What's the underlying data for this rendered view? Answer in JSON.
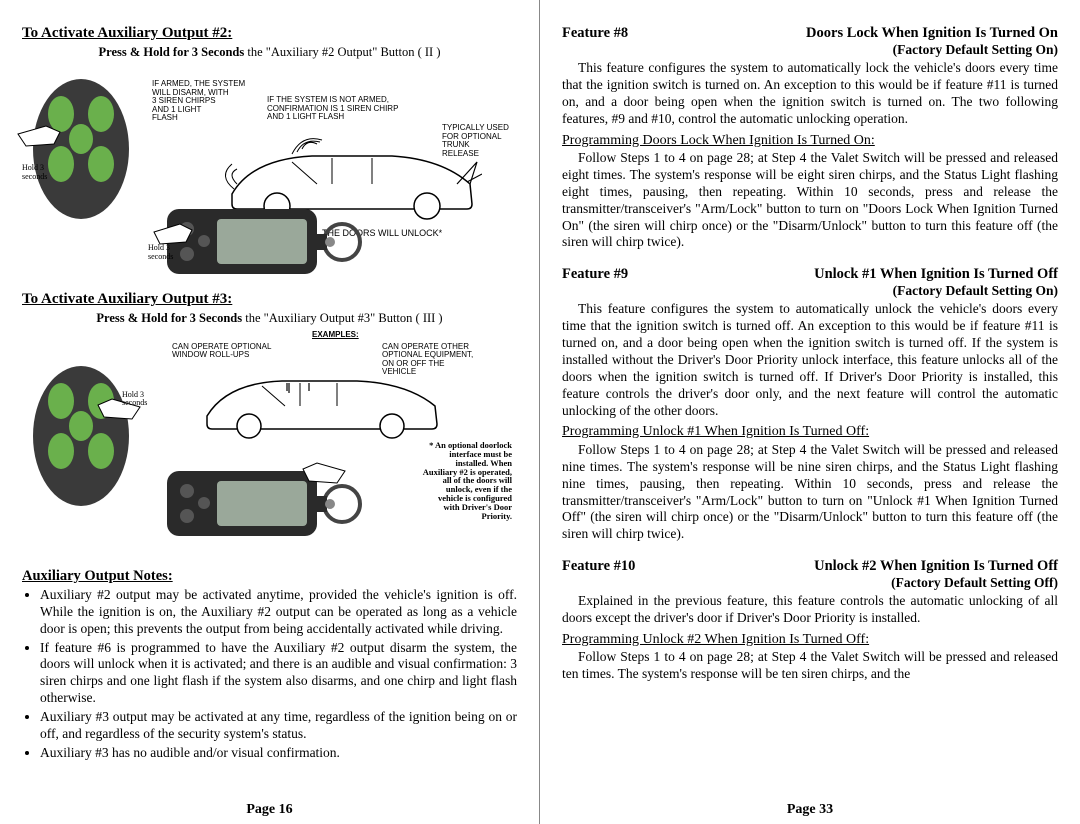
{
  "left": {
    "section2": {
      "title": "To Activate Auxiliary Output #2:",
      "instruction_prefix": "Press & Hold for 3 Seconds",
      "instruction_suffix": " the \"Auxiliary #2 Output\" Button ( II )",
      "labels": {
        "hold3": "Hold 3\nseconds",
        "armed": "IF ARMED, THE SYSTEM\nWILL DISARM, WITH\n3 SIREN CHIRPS\nAND 1 LIGHT\nFLASH",
        "notarmed": "IF THE SYSTEM IS NOT ARMED,\nCONFIRMATION IS 1 SIREN CHIRP\nAND 1 LIGHT FLASH",
        "typical": "TYPICALLY USED\nFOR OPTIONAL\nTRUNK\nRELEASE",
        "doorsunlock": "THE DOORS WILL UNLOCK*",
        "hold3b": "Hold 3\nseconds"
      }
    },
    "section3": {
      "title": "To Activate Auxiliary Output #3:",
      "instruction_prefix": "Press & Hold for 3 Seconds",
      "instruction_suffix": " the \"Auxiliary Output #3\" Button ( III )",
      "labels": {
        "examples": "EXAMPLES:",
        "rollups": "CAN OPERATE OPTIONAL\nWINDOW ROLL-UPS",
        "other": "CAN OPERATE OTHER\nOPTIONAL EQUIPMENT,\nON OR OFF THE\nVEHICLE",
        "hold3": "Hold 3\nseconds",
        "footnote": "* An optional doorlock\ninterface must be\ninstalled.  When\nAuxiliary #2 is operated,\nall of the doors will\nunlock, even if the\nvehicle is configured\nwith Driver's Door\nPriority."
      }
    },
    "notes_title": "Auxiliary Output Notes:",
    "notes": [
      "Auxiliary #2 output may be activated anytime, provided the vehicle's ignition is off.  While the ignition is on, the Auxiliary #2 output can be operated as long as a vehicle door is open; this prevents the output from being accidentally activated while driving.",
      "If feature #6 is programmed to have the Auxiliary #2 output disarm the system, the doors will unlock when it is activated; and there is an audible and visual confirmation: 3 siren chirps and one light flash if the system also disarms, and one chirp and light flash otherwise.",
      "Auxiliary #3 output may be activated at any time, regardless of the ignition being on or off, and regardless of the security system's status.",
      "Auxiliary #3 has no audible and/or visual confirmation."
    ],
    "page_num": "Page 16"
  },
  "right": {
    "f8": {
      "num": "Feature #8",
      "title": "Doors Lock When Ignition Is Turned On",
      "factory": "(Factory Default Setting  On)",
      "body": "This feature configures the system to automatically lock the vehicle's doors every time that the ignition switch is turned on.  An exception to this would be if feature #11 is turned on, and a door being open when the ignition switch is turned on.  The two following features, #9 and #10, control the automatic unlocking operation.",
      "prog_title": "Programming Doors Lock When Ignition Is Turned On:",
      "prog_body": "Follow Steps 1 to 4 on page 28; at Step 4 the Valet Switch will be pressed and released eight times.  The system's response will be eight siren chirps, and the Status Light flashing eight times, pausing, then repeating.  Within 10 seconds, press and release the transmitter/transceiver's \"Arm/Lock\" button to turn on \"Doors Lock When Ignition Turned On\" (the siren will chirp once) or the \"Disarm/Unlock\" button to turn this feature off (the siren will chirp twice)."
    },
    "f9": {
      "num": "Feature #9",
      "title": "Unlock #1 When Ignition Is Turned Off",
      "factory": "(Factory Default Setting  On)",
      "body": "This feature configures the system to automatically unlock the vehicle's doors every time that the ignition switch is turned off.  An exception to this would be if feature #11 is turned on, and a door being open when the ignition switch is turned off.  If the system is installed without the Driver's Door Priority unlock interface, this feature unlocks all of the doors when the ignition switch is turned off.  If Driver's Door Priority is installed, this feature controls the driver's door only, and the next feature will control the automatic unlocking of the other doors.",
      "prog_title": "Programming Unlock #1 When Ignition Is Turned Off:",
      "prog_body": "Follow Steps 1 to 4 on page 28; at Step 4 the Valet Switch will be pressed and released nine times.  The system's response will be nine siren chirps, and the Status Light flashing nine times, pausing, then repeating.  Within 10 seconds, press and release the transmitter/transceiver's \"Arm/Lock\" button to turn on \"Unlock #1 When Ignition Turned Off\" (the siren will chirp once) or the \"Disarm/Unlock\" button to turn this feature off (the siren will chirp twice)."
    },
    "f10": {
      "num": "Feature #10",
      "title": "Unlock #2 When Ignition Is Turned Off",
      "factory": "(Factory Default Setting  Off)",
      "body": "Explained in the previous feature, this feature controls the automatic unlocking of all doors except the driver's door if Driver's Door Priority is installed.",
      "prog_title": "Programming Unlock #2 When Ignition Is Turned Off:",
      "prog_body": "Follow Steps 1 to 4 on page 28; at Step 4 the Valet Switch will be pressed and released ten times.  The system's response will be ten siren chirps, and the"
    },
    "page_num": "Page 33"
  },
  "colors": {
    "remote_body": "#3a3a3a",
    "remote_button": "#6ab04c",
    "lcd_body": "#2a2a2a",
    "lcd_screen": "#9aa89a",
    "car_fill": "#ffffff",
    "car_stroke": "#000000"
  }
}
